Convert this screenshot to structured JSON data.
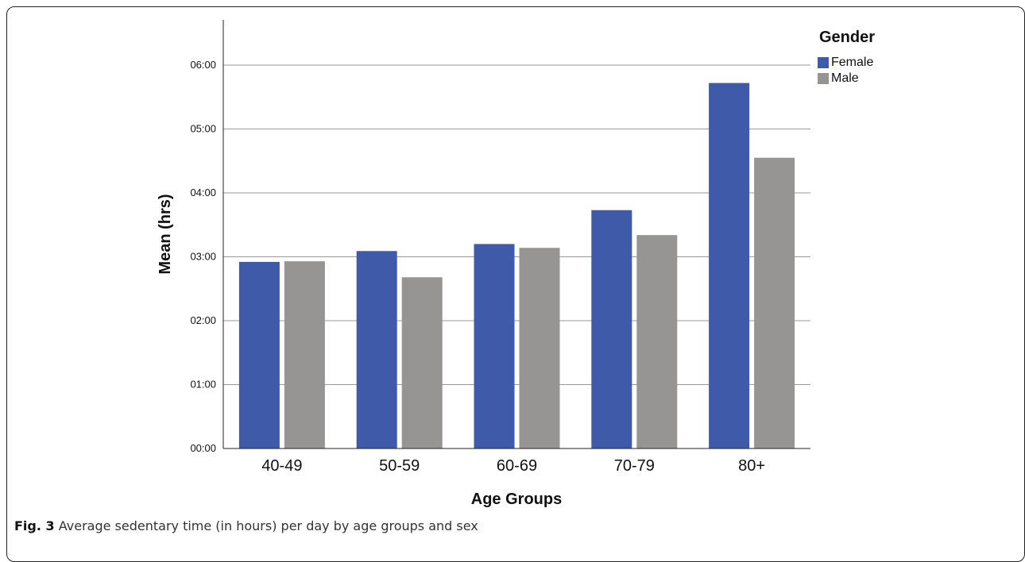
{
  "chart_data": {
    "type": "bar",
    "title": "",
    "xlabel": "Age Groups",
    "ylabel": "Mean (hrs)",
    "categories": [
      "40-49",
      "50-59",
      "60-69",
      "70-79",
      "80+"
    ],
    "y_tick_labels": [
      "00:00",
      "01:00",
      "02:00",
      "03:00",
      "04:00",
      "05:00",
      "06:00"
    ],
    "y_unit": "hours",
    "ylim": [
      0,
      6.0
    ],
    "grid": "horizontal",
    "legend_position": "top-right",
    "legend_title": "Gender",
    "series": [
      {
        "name": "Female",
        "color": "#3f5aa9",
        "values": [
          2.92,
          3.09,
          3.2,
          3.73,
          5.72
        ]
      },
      {
        "name": "Male",
        "color": "#979594",
        "values": [
          2.93,
          2.68,
          3.14,
          3.34,
          4.55
        ]
      }
    ]
  },
  "caption": {
    "label": "Fig. 3",
    "text": "Average sedentary time (in hours) per day by age groups and sex"
  }
}
